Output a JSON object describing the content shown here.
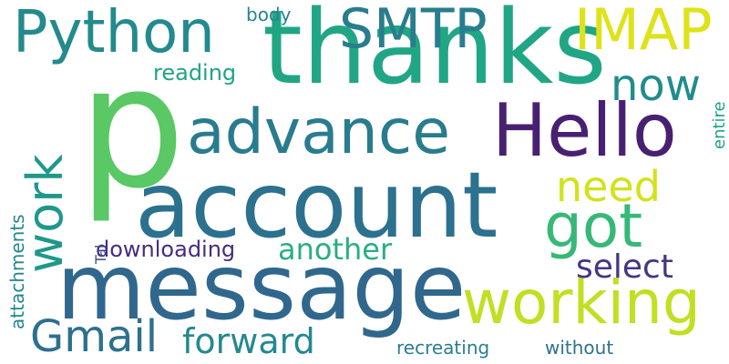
{
  "words": [
    {
      "id": "p",
      "text": "p",
      "color": "#5ac864"
    },
    {
      "id": "thanks",
      "text": "thanks",
      "color": "#21a685"
    },
    {
      "id": "account",
      "text": "account",
      "color": "#2c718e"
    },
    {
      "id": "message",
      "text": "message",
      "color": "#30678d"
    },
    {
      "id": "advance",
      "text": "advance",
      "color": "#287c8e"
    },
    {
      "id": "hello",
      "text": "Hello",
      "color": "#482071"
    },
    {
      "id": "python",
      "text": "Python",
      "color": "#238a8d"
    },
    {
      "id": "smtp",
      "text": "SMTP",
      "color": "#287d8e"
    },
    {
      "id": "imap",
      "text": "IMAP",
      "color": "#dde318"
    },
    {
      "id": "working",
      "text": "working",
      "color": "#c2df23"
    },
    {
      "id": "got",
      "text": "got",
      "color": "#37b878"
    },
    {
      "id": "work",
      "text": "work",
      "color": "#1f988b"
    },
    {
      "id": "gmail",
      "text": "Gmail",
      "color": "#2d708e"
    },
    {
      "id": "forward",
      "text": "forward",
      "color": "#23898e"
    },
    {
      "id": "now",
      "text": "now",
      "color": "#228c8d"
    },
    {
      "id": "need",
      "text": "need",
      "color": "#d2e21b"
    },
    {
      "id": "select",
      "text": "select",
      "color": "#453581"
    },
    {
      "id": "another",
      "text": "another",
      "color": "#29af7f"
    },
    {
      "id": "downloading",
      "text": "downloading",
      "color": "#472d7b"
    },
    {
      "id": "reading",
      "text": "reading",
      "color": "#20a386"
    },
    {
      "id": "body",
      "text": "body",
      "color": "#25858e"
    },
    {
      "id": "recreating",
      "text": "recreating",
      "color": "#277f8e"
    },
    {
      "id": "without",
      "text": "without",
      "color": "#2c738e"
    },
    {
      "id": "attachments",
      "text": "attachments",
      "color": "#24878e"
    },
    {
      "id": "tal",
      "text": "Tal",
      "color": "#3e4989"
    },
    {
      "id": "entire",
      "text": "entire",
      "color": "#1fa188"
    }
  ]
}
